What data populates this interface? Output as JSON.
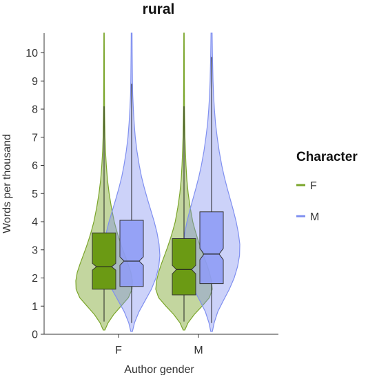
{
  "chart_data": {
    "type": "violin-boxplot",
    "title": "rural",
    "xlabel": "Author gender",
    "ylabel": "Words per thousand",
    "categories": [
      "F",
      "M"
    ],
    "ylim": [
      0,
      10.7
    ],
    "yticks": [
      0,
      1,
      2,
      3,
      4,
      5,
      6,
      7,
      8,
      9,
      10
    ],
    "grid": false,
    "legend": {
      "title": "Character",
      "position": "right",
      "entries": [
        {
          "label": "F",
          "color": "#7aa52a"
        },
        {
          "label": "M",
          "color": "#7f8ff0"
        }
      ]
    },
    "series": [
      {
        "name": "F",
        "color": "#7aa52a",
        "box_fill": "#6b9a14",
        "groups": [
          {
            "category": "F",
            "whisker_low": 0.45,
            "q1": 1.6,
            "median": 2.4,
            "q3": 3.6,
            "whisker_high": 8.1,
            "violin_min": 0.15,
            "violin_max": 10.7,
            "notch_low": 2.28,
            "notch_high": 2.52,
            "density": [
              [
                0.15,
                0.03
              ],
              [
                0.4,
                0.14
              ],
              [
                0.7,
                0.34
              ],
              [
                1.0,
                0.6
              ],
              [
                1.3,
                0.86
              ],
              [
                1.6,
                0.99
              ],
              [
                1.9,
                1.0
              ],
              [
                2.2,
                0.95
              ],
              [
                2.5,
                0.85
              ],
              [
                2.8,
                0.74
              ],
              [
                3.1,
                0.63
              ],
              [
                3.4,
                0.53
              ],
              [
                3.7,
                0.44
              ],
              [
                4.0,
                0.36
              ],
              [
                4.5,
                0.26
              ],
              [
                5.0,
                0.18
              ],
              [
                5.5,
                0.12
              ],
              [
                6.0,
                0.08
              ],
              [
                6.5,
                0.05
              ],
              [
                7.0,
                0.035
              ],
              [
                7.5,
                0.025
              ],
              [
                8.0,
                0.018
              ],
              [
                9.0,
                0.012
              ],
              [
                10.7,
                0.008
              ]
            ]
          },
          {
            "category": "M",
            "whisker_low": 0.45,
            "q1": 1.4,
            "median": 2.3,
            "q3": 3.4,
            "whisker_high": 8.1,
            "violin_min": 0.15,
            "violin_max": 10.7,
            "notch_low": 2.15,
            "notch_high": 2.45,
            "density": [
              [
                0.15,
                0.03
              ],
              [
                0.4,
                0.14
              ],
              [
                0.7,
                0.36
              ],
              [
                1.0,
                0.64
              ],
              [
                1.3,
                0.9
              ],
              [
                1.6,
                1.0
              ],
              [
                1.9,
                0.97
              ],
              [
                2.2,
                0.9
              ],
              [
                2.5,
                0.8
              ],
              [
                2.8,
                0.69
              ],
              [
                3.1,
                0.58
              ],
              [
                3.4,
                0.48
              ],
              [
                3.7,
                0.39
              ],
              [
                4.0,
                0.31
              ],
              [
                4.5,
                0.22
              ],
              [
                5.0,
                0.15
              ],
              [
                5.5,
                0.1
              ],
              [
                6.0,
                0.07
              ],
              [
                6.5,
                0.05
              ],
              [
                7.0,
                0.035
              ],
              [
                7.5,
                0.025
              ],
              [
                8.0,
                0.018
              ],
              [
                9.0,
                0.012
              ],
              [
                10.7,
                0.008
              ]
            ]
          }
        ]
      },
      {
        "name": "M",
        "color": "#7f8ff0",
        "box_fill": "#8f9cf5",
        "groups": [
          {
            "category": "F",
            "whisker_low": 0.4,
            "q1": 1.7,
            "median": 2.6,
            "q3": 4.05,
            "whisker_high": 8.9,
            "violin_min": 0.1,
            "violin_max": 10.7,
            "notch_low": 2.45,
            "notch_high": 2.75,
            "density": [
              [
                0.1,
                0.03
              ],
              [
                0.4,
                0.1
              ],
              [
                0.8,
                0.26
              ],
              [
                1.2,
                0.48
              ],
              [
                1.6,
                0.7
              ],
              [
                2.0,
                0.86
              ],
              [
                2.4,
                0.96
              ],
              [
                2.8,
                1.0
              ],
              [
                3.2,
                0.97
              ],
              [
                3.6,
                0.9
              ],
              [
                4.0,
                0.8
              ],
              [
                4.4,
                0.68
              ],
              [
                4.8,
                0.56
              ],
              [
                5.2,
                0.45
              ],
              [
                5.6,
                0.35
              ],
              [
                6.0,
                0.27
              ],
              [
                6.5,
                0.19
              ],
              [
                7.0,
                0.13
              ],
              [
                7.5,
                0.09
              ],
              [
                8.0,
                0.06
              ],
              [
                8.5,
                0.04
              ],
              [
                9.0,
                0.03
              ],
              [
                10.0,
                0.02
              ],
              [
                10.7,
                0.015
              ]
            ]
          },
          {
            "category": "M",
            "whisker_low": 0.4,
            "q1": 1.8,
            "median": 2.85,
            "q3": 4.35,
            "whisker_high": 9.85,
            "violin_min": 0.1,
            "violin_max": 10.7,
            "notch_low": 2.65,
            "notch_high": 3.05,
            "density": [
              [
                0.1,
                0.03
              ],
              [
                0.4,
                0.09
              ],
              [
                0.8,
                0.22
              ],
              [
                1.2,
                0.42
              ],
              [
                1.6,
                0.63
              ],
              [
                2.0,
                0.8
              ],
              [
                2.4,
                0.92
              ],
              [
                2.8,
                0.99
              ],
              [
                3.2,
                1.0
              ],
              [
                3.6,
                0.95
              ],
              [
                4.0,
                0.87
              ],
              [
                4.4,
                0.77
              ],
              [
                4.8,
                0.66
              ],
              [
                5.2,
                0.55
              ],
              [
                5.6,
                0.45
              ],
              [
                6.0,
                0.36
              ],
              [
                6.5,
                0.27
              ],
              [
                7.0,
                0.2
              ],
              [
                7.5,
                0.14
              ],
              [
                8.0,
                0.1
              ],
              [
                8.5,
                0.07
              ],
              [
                9.0,
                0.05
              ],
              [
                10.0,
                0.03
              ],
              [
                10.7,
                0.02
              ]
            ]
          }
        ]
      }
    ]
  }
}
